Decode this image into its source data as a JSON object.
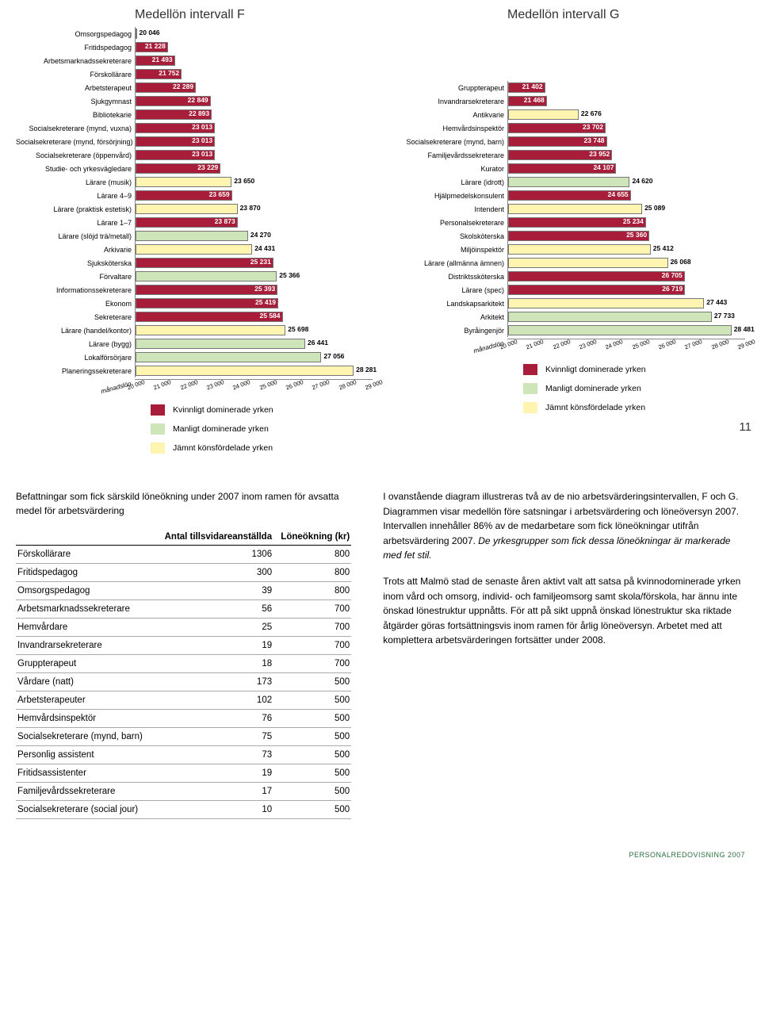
{
  "page_number": "11",
  "footer": "PERSONALREDOVISNING 2007",
  "colors": {
    "female": "#a81e3a",
    "male": "#cde5b9",
    "even": "#fff4b0",
    "bar_border": "#777777",
    "grid": "#888888"
  },
  "chart_f": {
    "title": "Medellön intervall F",
    "xmin": 20000,
    "xmax": 29000,
    "xtick_step": 1000,
    "axis_label": "månadslön",
    "bars": [
      {
        "label": "Omsorgspedagog",
        "value": 20046,
        "cat": "female"
      },
      {
        "label": "Fritidspedagog",
        "value": 21228,
        "cat": "female"
      },
      {
        "label": "Arbetsmarknadssekreterare",
        "value": 21493,
        "cat": "female"
      },
      {
        "label": "Förskollärare",
        "value": 21752,
        "cat": "female"
      },
      {
        "label": "Arbetsterapeut",
        "value": 22289,
        "cat": "female"
      },
      {
        "label": "Sjukgymnast",
        "value": 22849,
        "cat": "female"
      },
      {
        "label": "Bibliotekarie",
        "value": 22893,
        "cat": "female"
      },
      {
        "label": "Socialsekreterare (mynd, vuxna)",
        "value": 23013,
        "cat": "female"
      },
      {
        "label": "Socialsekreterare (mynd, försörjning)",
        "value": 23013,
        "cat": "female"
      },
      {
        "label": "Socialsekreterare (öppenvård)",
        "value": 23013,
        "cat": "female"
      },
      {
        "label": "Studie- och yrkesvägledare",
        "value": 23229,
        "cat": "female"
      },
      {
        "label": "Lärare (musik)",
        "value": 23650,
        "cat": "even"
      },
      {
        "label": "Lärare 4–9",
        "value": 23659,
        "cat": "female"
      },
      {
        "label": "Lärare (praktisk estetisk)",
        "value": 23870,
        "cat": "even"
      },
      {
        "label": "Lärare 1–7",
        "value": 23873,
        "cat": "female"
      },
      {
        "label": "Lärare (slöjd trä/metall)",
        "value": 24270,
        "cat": "male"
      },
      {
        "label": "Arkivarie",
        "value": 24431,
        "cat": "even"
      },
      {
        "label": "Sjuksköterska",
        "value": 25231,
        "cat": "female"
      },
      {
        "label": "Förvaltare",
        "value": 25366,
        "cat": "male"
      },
      {
        "label": "Informationssekreterare",
        "value": 25393,
        "cat": "female"
      },
      {
        "label": "Ekonom",
        "value": 25419,
        "cat": "female"
      },
      {
        "label": "Sekreterare",
        "value": 25584,
        "cat": "female"
      },
      {
        "label": "Lärare (handel/kontor)",
        "value": 25698,
        "cat": "even"
      },
      {
        "label": "Lärare (bygg)",
        "value": 26441,
        "cat": "male"
      },
      {
        "label": "Lokalförsörjare",
        "value": 27056,
        "cat": "male"
      },
      {
        "label": "Planeringssekreterare",
        "value": 28281,
        "cat": "even"
      }
    ]
  },
  "chart_g": {
    "title": "Medellön intervall G",
    "xmin": 20000,
    "xmax": 29000,
    "xtick_step": 1000,
    "axis_label": "månadslön",
    "bars": [
      {
        "label": "Gruppterapeut",
        "value": 21402,
        "cat": "female"
      },
      {
        "label": "Invandrarsekreterare",
        "value": 21468,
        "cat": "female"
      },
      {
        "label": "Antikvarie",
        "value": 22676,
        "cat": "even"
      },
      {
        "label": "Hemvårdsinspektör",
        "value": 23702,
        "cat": "female"
      },
      {
        "label": "Socialsekreterare (mynd, barn)",
        "value": 23748,
        "cat": "female"
      },
      {
        "label": "Familjevårdssekreterare",
        "value": 23952,
        "cat": "female"
      },
      {
        "label": "Kurator",
        "value": 24107,
        "cat": "female"
      },
      {
        "label": "Lärare (idrott)",
        "value": 24620,
        "cat": "male"
      },
      {
        "label": "Hjälpmedelskonsulent",
        "value": 24655,
        "cat": "female"
      },
      {
        "label": "Intendent",
        "value": 25089,
        "cat": "even"
      },
      {
        "label": "Personalsekreterare",
        "value": 25234,
        "cat": "female"
      },
      {
        "label": "Skolsköterska",
        "value": 25360,
        "cat": "female"
      },
      {
        "label": "Miljöinspektör",
        "value": 25412,
        "cat": "even"
      },
      {
        "label": "Lärare (allmänna ämnen)",
        "value": 26068,
        "cat": "even"
      },
      {
        "label": "Distriktssköterska",
        "value": 26705,
        "cat": "female"
      },
      {
        "label": "Lärare (spec)",
        "value": 26719,
        "cat": "female"
      },
      {
        "label": "Landskapsarkitekt",
        "value": 27443,
        "cat": "even"
      },
      {
        "label": "Arkitekt",
        "value": 27733,
        "cat": "male"
      },
      {
        "label": "Byråingenjör",
        "value": 28481,
        "cat": "male"
      }
    ]
  },
  "legend": [
    {
      "color": "female",
      "label": "Kvinnligt dominerade yrken"
    },
    {
      "color": "male",
      "label": "Manligt dominerade yrken"
    },
    {
      "color": "even",
      "label": "Jämnt könsfördelade yrken"
    }
  ],
  "table": {
    "intro": "Befattningar som fick särskild löneökning under 2007 inom ramen för avsatta medel för arbetsvärdering",
    "headers": [
      "",
      "Antal tillsvidareanställda",
      "Löneökning (kr)"
    ],
    "rows": [
      [
        "Förskollärare",
        "1306",
        "800"
      ],
      [
        "Fritidspedagog",
        "300",
        "800"
      ],
      [
        "Omsorgspedagog",
        "39",
        "800"
      ],
      [
        "Arbetsmarknadssekreterare",
        "56",
        "700"
      ],
      [
        "Hemvårdare",
        "25",
        "700"
      ],
      [
        "Invandrarsekreterare",
        "19",
        "700"
      ],
      [
        "Gruppterapeut",
        "18",
        "700"
      ],
      [
        "Vårdare (natt)",
        "173",
        "500"
      ],
      [
        "Arbetsterapeuter",
        "102",
        "500"
      ],
      [
        "Hemvårdsinspektör",
        "76",
        "500"
      ],
      [
        "Socialsekreterare (mynd, barn)",
        "75",
        "500"
      ],
      [
        "Personlig assistent",
        "73",
        "500"
      ],
      [
        "Fritidsassistenter",
        "19",
        "500"
      ],
      [
        "Familjevårdssekreterare",
        "17",
        "500"
      ],
      [
        "Socialsekreterare (social jour)",
        "10",
        "500"
      ]
    ]
  },
  "body": {
    "p1": "I ovanstående diagram illustreras två av de nio arbetsvärderingsintervallen, F och G. Diagrammen visar medellön före satsningar i arbetsvärdering och löneöversyn 2007. Intervallen innehåller 86% av de medarbetare som fick löneökningar utifrån arbetsvärdering 2007. ",
    "p1_em": "De yrkesgrupper som fick dessa löneökningar är markerade med fet stil.",
    "p2": "Trots att Malmö stad de senaste åren aktivt valt att satsa på kvinnodominerade yrken inom vård och omsorg, individ- och familjeomsorg samt skola/förskola, har ännu inte önskad lönestruktur uppnåtts. För att på sikt uppnå önskad lönestruktur ska riktade åtgärder göras fortsättningsvis inom ramen för årlig löneöversyn. Arbetet med att komplettera arbetsvärderingen fortsätter under 2008."
  }
}
